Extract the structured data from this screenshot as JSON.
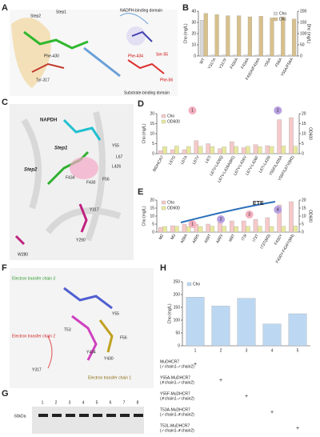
{
  "panel_labels": [
    "A",
    "B",
    "C",
    "D",
    "E",
    "F",
    "G",
    "H"
  ],
  "annotations": {
    "A": [
      "Step2",
      "Step1",
      "NADPH-binding domain",
      "Substrate-binding domain",
      "Phe-434",
      "Phe-430",
      "Tyr-317",
      "Ser-55",
      "Phe-56"
    ],
    "C": [
      "NAPDH",
      "Step1",
      "Step2",
      "Y55",
      "L67",
      "L426",
      "F434",
      "F430",
      "F56",
      "Y317",
      "Y290",
      "W280"
    ],
    "F": [
      "Electron transfer chain 3",
      "Electron transfer chain 2",
      "Electron transfer chain 1",
      "Y55",
      "T53",
      "F56",
      "Y430",
      "Y317",
      "Y434"
    ],
    "G": {
      "marker": "60kDa",
      "lanes": [
        "1",
        "2",
        "3",
        "4",
        "5",
        "6",
        "7",
        "8"
      ]
    }
  },
  "chart_data": [
    {
      "type": "bar",
      "legend": "upper right",
      "categories": [
        "WT",
        "Y317A",
        "Y317F",
        "F430A",
        "F434A",
        "F430A/F434A",
        "Y55A",
        "F56A",
        "Y55A/F56A"
      ],
      "series": [
        {
          "name": "Cho",
          "color": "#d9d9d9",
          "values": [
            32,
            1,
            1,
            1,
            1,
            1,
            1,
            1,
            1
          ]
        },
        {
          "name": "Dhc",
          "color": "#d8c08c",
          "axis": "y2",
          "values": [
            190,
            185,
            180,
            180,
            175,
            178,
            170,
            175,
            165
          ]
        }
      ],
      "ylabel": "Cho (mg/L)",
      "y2label": "Dhc (mg/L)",
      "ylim": [
        0,
        40
      ],
      "yticks": [
        0,
        10,
        20,
        30,
        40
      ],
      "y2lim": [
        0,
        200
      ],
      "y2ticks": [
        0,
        50,
        100,
        150,
        200
      ]
    },
    {
      "type": "bar",
      "legend": "upper left",
      "categories": [
        "BtDHCR7",
        "L67G",
        "L67A",
        "L67V",
        "L67I",
        "L67V-L426Q",
        "L67V-L426A(M1)",
        "L67V-L426V",
        "L67V-L426F",
        "L67I-L426I",
        "Y55F/L426A",
        "Y55F/L67V(M2)"
      ],
      "series": [
        {
          "name": "Cho",
          "color": "#f6c9c9",
          "values": [
            1.5,
            2,
            2,
            6.5,
            5,
            2.5,
            6,
            3,
            4.5,
            4,
            17,
            18
          ]
        },
        {
          "name": "OD600",
          "color": "#e8e89c",
          "axis": "y2",
          "values": [
            3.5,
            3.8,
            3.6,
            3.7,
            3.5,
            3.4,
            3.6,
            3.7,
            3.5,
            3.6,
            3.8,
            3.7
          ]
        }
      ],
      "ylabel": "Cho (mg/L)",
      "y2label": "OD600",
      "ylim": [
        0,
        20
      ],
      "yticks": [
        0,
        5,
        10,
        15,
        20
      ],
      "y2lim": [
        0,
        20
      ],
      "y2ticks": [
        0,
        5,
        10,
        15,
        20
      ],
      "callouts": [
        "1",
        "2"
      ]
    },
    {
      "type": "bar",
      "legend": "upper left",
      "categories": [
        "M2",
        "M3",
        "A69A",
        "A69S",
        "A69T",
        "A69V",
        "I69T",
        "I73I",
        "I73T",
        "I73T(M3)",
        "F430Y",
        "F430Y-F434Y(M4)"
      ],
      "series": [
        {
          "name": "Cho",
          "color": "#f6c9c9",
          "values": [
            3,
            4,
            5,
            5,
            5,
            6,
            7,
            7,
            8,
            9,
            17,
            19
          ]
        },
        {
          "name": "OD600",
          "color": "#e8e89c",
          "axis": "y2",
          "values": [
            3.5,
            3.6,
            3.4,
            3.5,
            3.7,
            3.6,
            3.5,
            3.6,
            3.7,
            3.5,
            3.6,
            3.8
          ]
        }
      ],
      "ylabel": "Cho (mg/L)",
      "y2label": "OD600",
      "ylim": [
        0,
        20
      ],
      "yticks": [
        0,
        5,
        10,
        15,
        20
      ],
      "y2lim": [
        0,
        20
      ],
      "y2ticks": [
        0,
        5,
        10,
        15,
        20
      ],
      "callouts": [
        "1",
        "2",
        "3",
        "4"
      ],
      "arrow_label": "ETE"
    },
    {
      "type": "bar",
      "legend": "upper left",
      "categories": [
        "1",
        "2",
        "3",
        "4",
        "5"
      ],
      "series": [
        {
          "name": "Cho",
          "color": "#bcd7f2",
          "values": [
            190,
            155,
            185,
            85,
            125
          ]
        }
      ],
      "ylabel": "Cho (mg/L)",
      "ylim": [
        0,
        250
      ],
      "yticks": [
        0,
        50,
        100,
        150,
        200,
        250
      ],
      "table": [
        {
          "label": "MuDHCR7",
          "chain": "(✓chain1-✓chain2)",
          "marks": [
            "+",
            "",
            "",
            "",
            ""
          ]
        },
        {
          "label": "Y55A-MuDHCR7",
          "chain": "(✗chain1-✓chain2)",
          "marks": [
            "",
            "+",
            "",
            "",
            ""
          ]
        },
        {
          "label": "Y55F-MuDHCR7",
          "chain": "(✗chain1-✓chain2)",
          "marks": [
            "",
            "",
            "+",
            "",
            ""
          ]
        },
        {
          "label": "T53A-MuDHCR7",
          "chain": "(✓chain1-✗chain2)",
          "marks": [
            "",
            "",
            "",
            "+",
            ""
          ]
        },
        {
          "label": "T53L-MuDHCR7",
          "chain": "(✓chain1-✗chain2)",
          "marks": [
            "",
            "",
            "",
            "",
            "+"
          ]
        }
      ]
    }
  ]
}
